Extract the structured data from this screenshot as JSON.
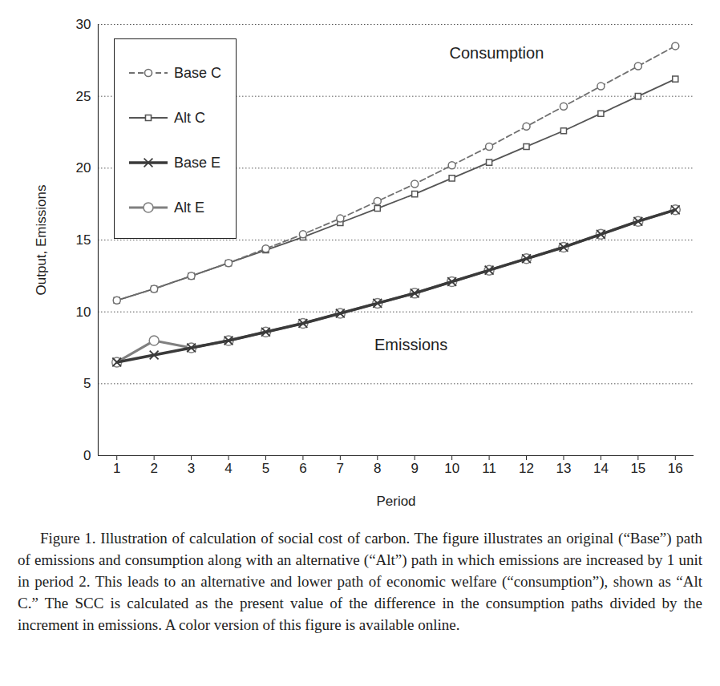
{
  "chart_data": {
    "type": "line",
    "caption": "Figure 1. Illustration of calculation of social cost of carbon. The figure illustrates an original (“Base”) path of emissions and consumption along with an alternative (“Alt”) path in which emissions are increased by 1 unit in period 2. This leads to an alternative and lower path of economic welfare (“consumption”), shown as “Alt C.” The SCC is calculated as the present value of the difference in the consumption paths divided by the increment in emissions. A color version of this figure is available online.",
    "x_label": "Period",
    "y_label": "Output, Emissions",
    "x": [
      1,
      2,
      3,
      4,
      5,
      6,
      7,
      8,
      9,
      10,
      11,
      12,
      13,
      14,
      15,
      16
    ],
    "xlim": [
      0.5,
      16.5
    ],
    "xticks": [
      1,
      2,
      3,
      4,
      5,
      6,
      7,
      8,
      9,
      10,
      11,
      12,
      13,
      14,
      15,
      16
    ],
    "ylim": [
      0,
      30
    ],
    "yticks": [
      0,
      5,
      10,
      15,
      20,
      25,
      30
    ],
    "grid": true,
    "legend": "top-left",
    "annotations": [
      {
        "text": "Consumption",
        "x": 11.2,
        "y": 28
      },
      {
        "text": "Emissions",
        "x": 8.9,
        "y": 7.7
      }
    ],
    "series": [
      {
        "name": "Base C",
        "color": "#707070",
        "marker": "circle",
        "line_style": "dashed",
        "values": [
          10.8,
          11.6,
          12.5,
          13.4,
          14.4,
          15.4,
          16.5,
          17.7,
          18.9,
          20.2,
          21.5,
          22.9,
          24.3,
          25.7,
          27.1,
          28.5
        ]
      },
      {
        "name": "Alt C",
        "color": "#555555",
        "marker": "square",
        "line_style": "solid",
        "values": [
          10.8,
          11.6,
          12.5,
          13.4,
          14.3,
          15.2,
          16.2,
          17.2,
          18.2,
          19.3,
          20.4,
          21.5,
          22.6,
          23.8,
          25.0,
          26.2
        ]
      },
      {
        "name": "Base E",
        "color": "#3a3a3a",
        "marker": "times",
        "line_style": "solid",
        "values": [
          6.5,
          7.0,
          7.5,
          8.0,
          8.6,
          9.2,
          9.9,
          10.6,
          11.3,
          12.1,
          12.9,
          13.7,
          14.5,
          15.4,
          16.3,
          17.1
        ]
      },
      {
        "name": "Alt E",
        "color": "#808080",
        "marker": "circle",
        "line_style": "solid",
        "values": [
          6.5,
          8.0,
          7.5,
          8.0,
          8.6,
          9.2,
          9.9,
          10.6,
          11.3,
          12.1,
          12.9,
          13.7,
          14.5,
          15.4,
          16.3,
          17.1
        ]
      }
    ]
  }
}
